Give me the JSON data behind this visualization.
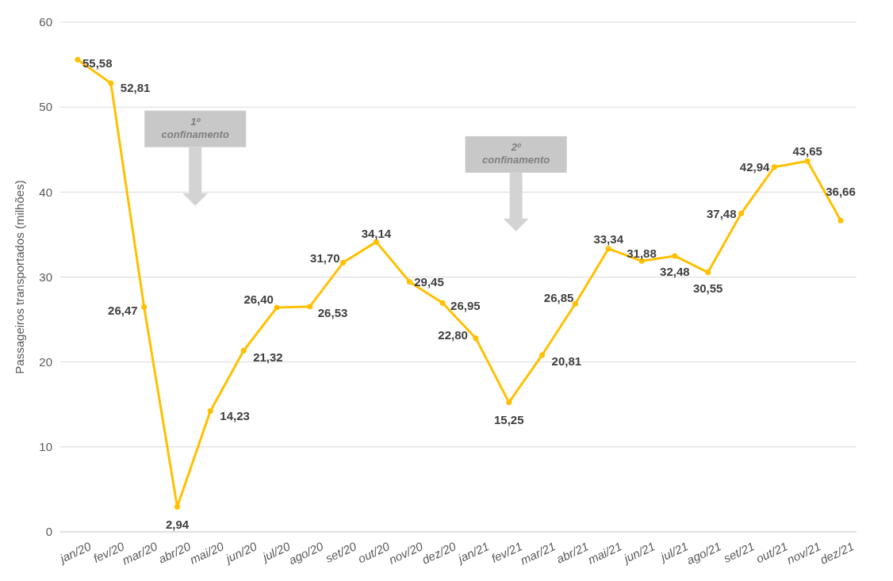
{
  "chart_data": {
    "type": "line",
    "ylabel": "Passageiros transportados (milhões)",
    "categories": [
      "jan/20",
      "fev/20",
      "mar/20",
      "abr/20",
      "mai/20",
      "jun/20",
      "jul/20",
      "ago/20",
      "set/20",
      "out/20",
      "nov/20",
      "dez/20",
      "jan/21",
      "fev/21",
      "mar/21",
      "abr/21",
      "mai/21",
      "jun/21",
      "jul/21",
      "ago/21",
      "set/21",
      "out/21",
      "nov/21",
      "dez/21"
    ],
    "series": [
      {
        "color": "#ffc000",
        "values": [
          55.58,
          52.81,
          26.47,
          2.94,
          14.23,
          21.32,
          26.4,
          26.53,
          31.7,
          34.14,
          29.45,
          26.95,
          22.8,
          15.25,
          20.81,
          26.85,
          33.34,
          31.88,
          32.48,
          30.55,
          37.48,
          42.94,
          43.65,
          36.66
        ]
      }
    ],
    "value_labels": [
      "55,58",
      "52,81",
      "26,47",
      "2,94",
      "14,23",
      "21,32",
      "26,40",
      "26,53",
      "31,70",
      "34,14",
      "29,45",
      "26,95",
      "22,80",
      "15,25",
      "20,81",
      "26,85",
      "33,34",
      "31,88",
      "32,48",
      "30,55",
      "37,48",
      "42,94",
      "43,65",
      "36,66"
    ],
    "ylim": [
      0,
      60
    ],
    "yticks": [
      0,
      10,
      20,
      30,
      40,
      50,
      60
    ],
    "grid": "y",
    "marker": "circle",
    "line_style": "solid",
    "annotations": [
      "1º confinamento",
      "2º confinamento"
    ]
  }
}
